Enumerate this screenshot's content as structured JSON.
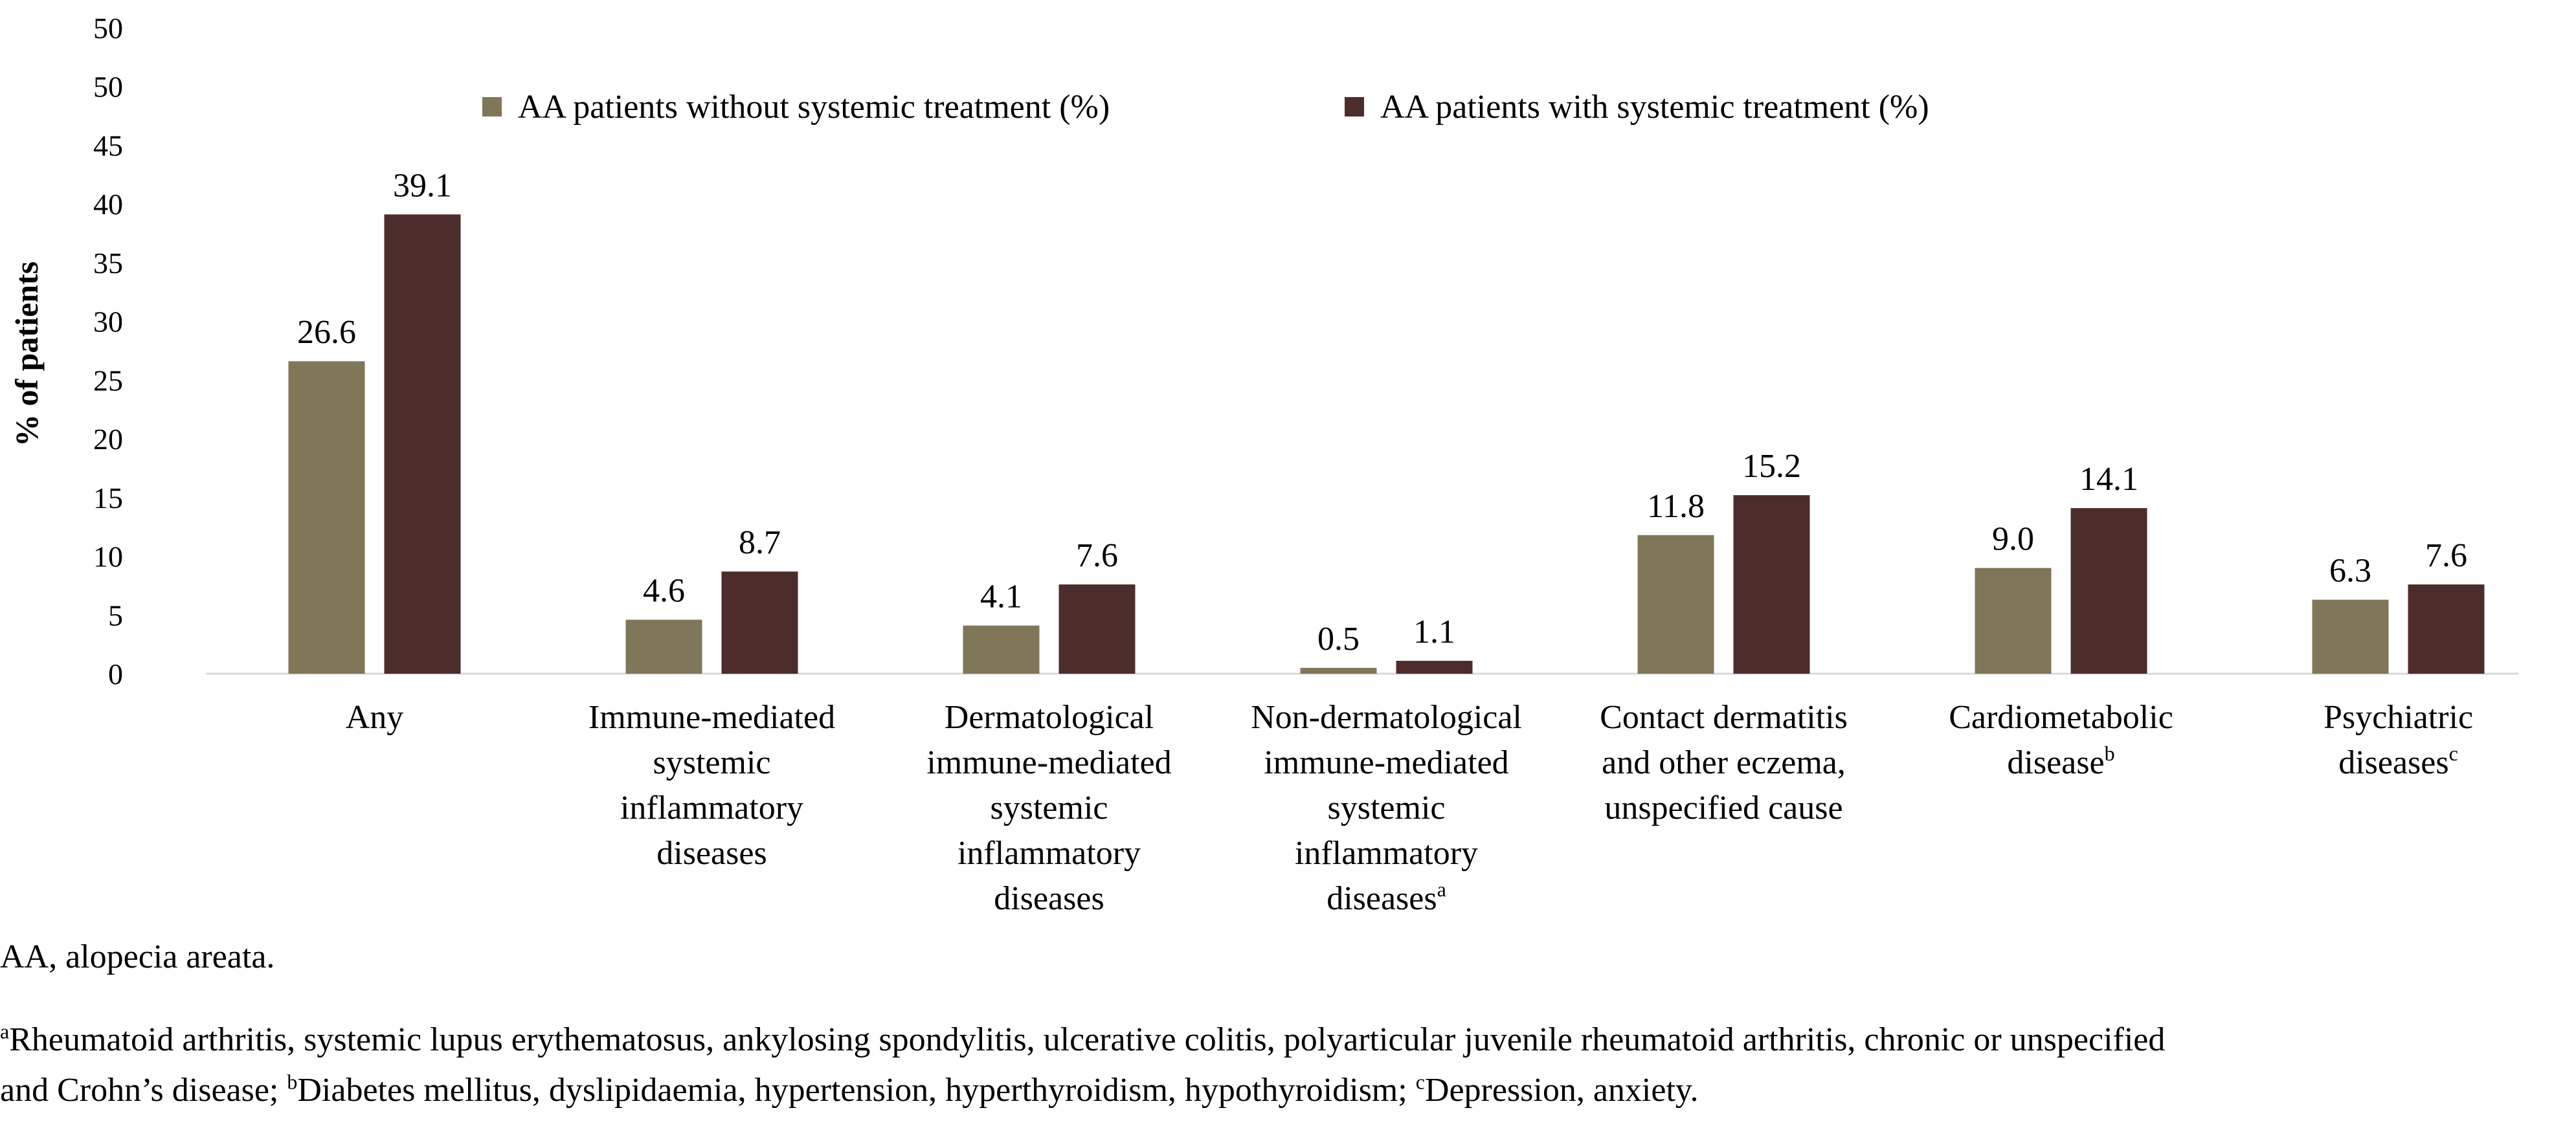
{
  "chart_data": {
    "type": "bar",
    "ylabel": "% of patients",
    "xlabel": "",
    "ylim": [
      0,
      50
    ],
    "y_ticks": [
      "0",
      "5",
      "10",
      "15",
      "20",
      "25",
      "30",
      "35",
      "40",
      "45",
      "50",
      "50"
    ],
    "legend_position": "top",
    "categories": [
      {
        "lines": [
          "Any"
        ],
        "sup": ""
      },
      {
        "lines": [
          "Immune-mediated",
          "systemic",
          "inflammatory",
          "diseases"
        ],
        "sup": ""
      },
      {
        "lines": [
          "Dermatological",
          "immune-mediated",
          "systemic",
          "inflammatory",
          "diseases"
        ],
        "sup": ""
      },
      {
        "lines": [
          "Non-dermatological",
          "immune-mediated",
          "systemic",
          "inflammatory",
          "diseases"
        ],
        "sup": "a"
      },
      {
        "lines": [
          "Contact dermatitis",
          "and other eczema,",
          "unspecified cause"
        ],
        "sup": ""
      },
      {
        "lines": [
          "Cardiometabolic",
          "disease"
        ],
        "sup": "b"
      },
      {
        "lines": [
          "Psychiatric",
          "diseases"
        ],
        "sup": "c"
      }
    ],
    "series": [
      {
        "name": "AA patients without systemic treatment (%)",
        "color": "#807658",
        "values": [
          26.6,
          4.6,
          4.1,
          0.5,
          11.8,
          9.0,
          6.3
        ],
        "labels": [
          "26.6",
          "4.6",
          "4.1",
          "0.5",
          "11.8",
          "9.0",
          "6.3"
        ]
      },
      {
        "name": "AA patients with systemic treatment (%)",
        "color": "#4d2c2c",
        "values": [
          39.1,
          8.7,
          7.6,
          1.1,
          15.2,
          14.1,
          7.6
        ],
        "labels": [
          "39.1",
          "8.7",
          "7.6",
          "1.1",
          "15.2",
          "14.1",
          "7.6"
        ]
      }
    ]
  },
  "footnotes": {
    "abbreviation": "AA, alopecia areata.",
    "line1": {
      "sup_a": "a",
      "text": "Rheumatoid arthritis, systemic lupus erythematosus, ankylosing spondylitis, ulcerative colitis, polyarticular juvenile rheumatoid arthritis, chronic or unspecified"
    },
    "line2": {
      "text_a": "and Crohn’s disease; ",
      "sup_b": "b",
      "text_b": "Diabetes mellitus, dyslipidaemia, hypertension, hyperthyroidism, hypothyroidism; ",
      "sup_c": "c",
      "text_c": "Depression, anxiety."
    }
  }
}
